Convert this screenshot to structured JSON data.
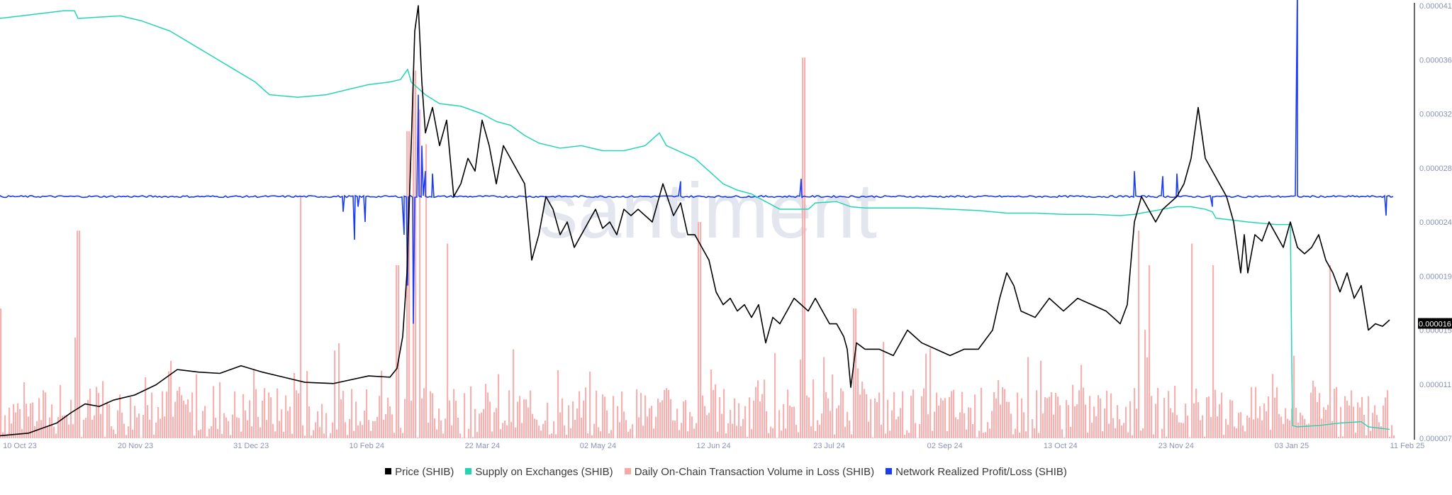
{
  "chart_data": {
    "type": "line",
    "watermark": "santiment",
    "x_ticks": [
      "10 Oct 23",
      "20 Nov 23",
      "31 Dec 23",
      "10 Feb 24",
      "22 Mar 24",
      "02 May 24",
      "12 Jun 24",
      "23 Jul 24",
      "02 Sep 24",
      "13 Oct 24",
      "23 Nov 24",
      "03 Jan 25",
      "11 Feb 25"
    ],
    "y_ticks": [
      "0.000041",
      "0.000036",
      "0.000032",
      "0.000028",
      "0.000024",
      "0.000019",
      "0.000015",
      "0.000011",
      "0.000007"
    ],
    "ylim": [
      7e-06,
      4.1e-05
    ],
    "price_label": "0.000016",
    "legend_placement": "bottom",
    "series": [
      {
        "name": "Price (SHIB)",
        "color": "#000000",
        "kind": "line",
        "axis": "price",
        "points": [
          [
            0,
            7.2e-06
          ],
          [
            40,
            7.4e-06
          ],
          [
            80,
            8.2e-06
          ],
          [
            100,
            9e-06
          ],
          [
            120,
            9.7e-06
          ],
          [
            140,
            9.5e-06
          ],
          [
            160,
            1e-05
          ],
          [
            190,
            1.04e-05
          ],
          [
            220,
            1.12e-05
          ],
          [
            250,
            1.24e-05
          ],
          [
            280,
            1.22e-05
          ],
          [
            310,
            1.21e-05
          ],
          [
            340,
            1.27e-05
          ],
          [
            370,
            1.22e-05
          ],
          [
            400,
            1.18e-05
          ],
          [
            430,
            1.14e-05
          ],
          [
            470,
            1.13e-05
          ],
          [
            520,
            1.19e-05
          ],
          [
            550,
            1.18e-05
          ],
          [
            560,
            1.25e-05
          ],
          [
            568,
            1.5e-05
          ],
          [
            574,
            2e-05
          ],
          [
            580,
            3e-05
          ],
          [
            585,
            3.9e-05
          ],
          [
            590,
            4.1e-05
          ],
          [
            595,
            3.5e-05
          ],
          [
            600,
            3.1e-05
          ],
          [
            610,
            3.3e-05
          ],
          [
            620,
            3e-05
          ],
          [
            630,
            3.2e-05
          ],
          [
            640,
            2.6e-05
          ],
          [
            650,
            2.7e-05
          ],
          [
            660,
            2.9e-05
          ],
          [
            670,
            2.8e-05
          ],
          [
            680,
            3.2e-05
          ],
          [
            690,
            3e-05
          ],
          [
            700,
            2.7e-05
          ],
          [
            710,
            3e-05
          ],
          [
            720,
            2.9e-05
          ],
          [
            730,
            2.8e-05
          ],
          [
            740,
            2.7e-05
          ],
          [
            750,
            2.1e-05
          ],
          [
            760,
            2.3e-05
          ],
          [
            770,
            2.6e-05
          ],
          [
            780,
            2.5e-05
          ],
          [
            790,
            2.3e-05
          ],
          [
            800,
            2.4e-05
          ],
          [
            810,
            2.2e-05
          ],
          [
            820,
            2.3e-05
          ],
          [
            830,
            2.4e-05
          ],
          [
            840,
            2.5e-05
          ],
          [
            850,
            2.35e-05
          ],
          [
            860,
            2.4e-05
          ],
          [
            870,
            2.3e-05
          ],
          [
            880,
            2.5e-05
          ],
          [
            890,
            2.45e-05
          ],
          [
            900,
            2.5e-05
          ],
          [
            920,
            2.4e-05
          ],
          [
            935,
            2.7e-05
          ],
          [
            950,
            2.45e-05
          ],
          [
            960,
            2.55e-05
          ],
          [
            970,
            2.3e-05
          ],
          [
            980,
            2.3e-05
          ],
          [
            990,
            2.2e-05
          ],
          [
            1000,
            2.1e-05
          ],
          [
            1010,
            1.85e-05
          ],
          [
            1020,
            1.75e-05
          ],
          [
            1030,
            1.8e-05
          ],
          [
            1040,
            1.7e-05
          ],
          [
            1050,
            1.75e-05
          ],
          [
            1060,
            1.65e-05
          ],
          [
            1070,
            1.75e-05
          ],
          [
            1080,
            1.45e-05
          ],
          [
            1090,
            1.65e-05
          ],
          [
            1100,
            1.6e-05
          ],
          [
            1110,
            1.7e-05
          ],
          [
            1120,
            1.8e-05
          ],
          [
            1130,
            1.75e-05
          ],
          [
            1140,
            1.7e-05
          ],
          [
            1150,
            1.8e-05
          ],
          [
            1160,
            1.7e-05
          ],
          [
            1170,
            1.6e-05
          ],
          [
            1180,
            1.6e-05
          ],
          [
            1190,
            1.5e-05
          ],
          [
            1195,
            1.4e-05
          ],
          [
            1200,
            1.1e-05
          ],
          [
            1208,
            1.45e-05
          ],
          [
            1220,
            1.4e-05
          ],
          [
            1240,
            1.4e-05
          ],
          [
            1260,
            1.35e-05
          ],
          [
            1280,
            1.55e-05
          ],
          [
            1290,
            1.5e-05
          ],
          [
            1300,
            1.45e-05
          ],
          [
            1320,
            1.4e-05
          ],
          [
            1340,
            1.35e-05
          ],
          [
            1360,
            1.4e-05
          ],
          [
            1380,
            1.4e-05
          ],
          [
            1400,
            1.55e-05
          ],
          [
            1410,
            1.8e-05
          ],
          [
            1420,
            2e-05
          ],
          [
            1430,
            1.9e-05
          ],
          [
            1440,
            1.7e-05
          ],
          [
            1460,
            1.65e-05
          ],
          [
            1480,
            1.8e-05
          ],
          [
            1500,
            1.7e-05
          ],
          [
            1520,
            1.8e-05
          ],
          [
            1540,
            1.75e-05
          ],
          [
            1560,
            1.7e-05
          ],
          [
            1580,
            1.6e-05
          ],
          [
            1590,
            1.75e-05
          ],
          [
            1600,
            2.4e-05
          ],
          [
            1610,
            2.6e-05
          ],
          [
            1620,
            2.5e-05
          ],
          [
            1630,
            2.4e-05
          ],
          [
            1640,
            2.5e-05
          ],
          [
            1660,
            2.6e-05
          ],
          [
            1670,
            2.7e-05
          ],
          [
            1680,
            2.9e-05
          ],
          [
            1690,
            3.3e-05
          ],
          [
            1700,
            2.9e-05
          ],
          [
            1710,
            2.8e-05
          ],
          [
            1720,
            2.7e-05
          ],
          [
            1730,
            2.6e-05
          ],
          [
            1740,
            2.4e-05
          ],
          [
            1750,
            2e-05
          ],
          [
            1755,
            2.3e-05
          ],
          [
            1760,
            2e-05
          ],
          [
            1770,
            2.3e-05
          ],
          [
            1780,
            2.25e-05
          ],
          [
            1790,
            2.4e-05
          ],
          [
            1800,
            2.3e-05
          ],
          [
            1810,
            2.2e-05
          ],
          [
            1820,
            2.4e-05
          ],
          [
            1830,
            2.2e-05
          ],
          [
            1840,
            2.15e-05
          ],
          [
            1850,
            2.2e-05
          ],
          [
            1860,
            2.3e-05
          ],
          [
            1870,
            2.1e-05
          ],
          [
            1880,
            2e-05
          ],
          [
            1890,
            1.85e-05
          ],
          [
            1900,
            2e-05
          ],
          [
            1910,
            1.8e-05
          ],
          [
            1920,
            1.9e-05
          ],
          [
            1930,
            1.55e-05
          ],
          [
            1940,
            1.6e-05
          ],
          [
            1950,
            1.58e-05
          ],
          [
            1960,
            1.63e-05
          ]
        ]
      },
      {
        "name": "Supply on Exchanges (SHIB)",
        "color": "#26d4b4",
        "kind": "line",
        "axis": "supply",
        "points": [
          [
            0,
            4e-05
          ],
          [
            30,
            4.02e-05
          ],
          [
            60,
            4.04e-05
          ],
          [
            90,
            4.06e-05
          ],
          [
            105,
            4.06e-05
          ],
          [
            110,
            4e-05
          ],
          [
            140,
            4.01e-05
          ],
          [
            170,
            4.02e-05
          ],
          [
            200,
            3.98e-05
          ],
          [
            240,
            3.9e-05
          ],
          [
            270,
            3.8e-05
          ],
          [
            300,
            3.7e-05
          ],
          [
            330,
            3.6e-05
          ],
          [
            360,
            3.5e-05
          ],
          [
            370,
            3.45e-05
          ],
          [
            380,
            3.4e-05
          ],
          [
            420,
            3.38e-05
          ],
          [
            440,
            3.39e-05
          ],
          [
            460,
            3.4e-05
          ],
          [
            490,
            3.44e-05
          ],
          [
            520,
            3.48e-05
          ],
          [
            550,
            3.5e-05
          ],
          [
            565,
            3.52e-05
          ],
          [
            575,
            3.6e-05
          ],
          [
            580,
            3.5e-05
          ],
          [
            600,
            3.4e-05
          ],
          [
            620,
            3.33e-05
          ],
          [
            650,
            3.31e-05
          ],
          [
            680,
            3.25e-05
          ],
          [
            700,
            3.19e-05
          ],
          [
            720,
            3.16e-05
          ],
          [
            740,
            3.08e-05
          ],
          [
            760,
            3.02e-05
          ],
          [
            790,
            2.98e-05
          ],
          [
            820,
            3e-05
          ],
          [
            850,
            2.96e-05
          ],
          [
            880,
            2.96e-05
          ],
          [
            910,
            3e-05
          ],
          [
            930,
            3.1e-05
          ],
          [
            940,
            3e-05
          ],
          [
            960,
            2.95e-05
          ],
          [
            980,
            2.9e-05
          ],
          [
            1000,
            2.8e-05
          ],
          [
            1020,
            2.7e-05
          ],
          [
            1040,
            2.65e-05
          ],
          [
            1060,
            2.62e-05
          ],
          [
            1080,
            2.56e-05
          ],
          [
            1100,
            2.5e-05
          ],
          [
            1140,
            2.5e-05
          ],
          [
            1150,
            2.55e-05
          ],
          [
            1180,
            2.56e-05
          ],
          [
            1200,
            2.52e-05
          ],
          [
            1220,
            2.51e-05
          ],
          [
            1260,
            2.51e-05
          ],
          [
            1300,
            2.51e-05
          ],
          [
            1340,
            2.5e-05
          ],
          [
            1380,
            2.49e-05
          ],
          [
            1420,
            2.47e-05
          ],
          [
            1460,
            2.47e-05
          ],
          [
            1500,
            2.46e-05
          ],
          [
            1540,
            2.46e-05
          ],
          [
            1580,
            2.45e-05
          ],
          [
            1600,
            2.46e-05
          ],
          [
            1620,
            2.48e-05
          ],
          [
            1640,
            2.5e-05
          ],
          [
            1660,
            2.52e-05
          ],
          [
            1680,
            2.52e-05
          ],
          [
            1700,
            2.5e-05
          ],
          [
            1710,
            2.48e-05
          ],
          [
            1715,
            2.43e-05
          ],
          [
            1730,
            2.42e-05
          ],
          [
            1760,
            2.4e-05
          ],
          [
            1800,
            2.38e-05
          ],
          [
            1820,
            2.38e-05
          ],
          [
            1823,
            8e-06
          ],
          [
            1830,
            7.9e-06
          ],
          [
            1860,
            8e-06
          ],
          [
            1890,
            8.2e-06
          ],
          [
            1920,
            8.3e-06
          ],
          [
            1930,
            7.9e-06
          ],
          [
            1945,
            7.8e-06
          ],
          [
            1960,
            7.7e-06
          ]
        ]
      },
      {
        "name": "Daily On-Chain Transaction Volume in Loss (SHIB)",
        "color": "#f7a9a9",
        "kind": "bar",
        "axis": "volume",
        "spikes": [
          [
            0,
            0.3
          ],
          [
            110,
            0.48
          ],
          [
            423,
            0.56
          ],
          [
            560,
            0.4
          ],
          [
            575,
            0.71
          ],
          [
            584,
            0.85
          ],
          [
            591,
            0.76
          ],
          [
            600,
            0.68
          ],
          [
            630,
            0.45
          ],
          [
            985,
            0.5
          ],
          [
            1132,
            0.88
          ],
          [
            1205,
            0.3
          ],
          [
            1605,
            0.48
          ],
          [
            1620,
            0.4
          ],
          [
            1680,
            0.45
          ],
          [
            1710,
            0.4
          ],
          [
            1875,
            0.4
          ]
        ],
        "baseline_level": 0.12,
        "max_volume_label": ""
      },
      {
        "name": "Network Realized Profit/Loss (SHIB)",
        "color": "#1a3cf5",
        "kind": "line",
        "axis": "nrpl",
        "zero_level": 2.6e-05,
        "spikes": [
          [
            484,
            -1.2e-06
          ],
          [
            500,
            -3.4e-06
          ],
          [
            505,
            -8e-07
          ],
          [
            515,
            -2e-06
          ],
          [
            570,
            -3e-06
          ],
          [
            575,
            -7e-06
          ],
          [
            583,
            -1e-05
          ],
          [
            590,
            8e-06
          ],
          [
            595,
            4e-06
          ],
          [
            600,
            2e-06
          ],
          [
            610,
            1.8e-06
          ],
          [
            960,
            1.2e-06
          ],
          [
            1130,
            1.4e-06
          ],
          [
            1600,
            2e-06
          ],
          [
            1640,
            1.6e-06
          ],
          [
            1660,
            1.8e-06
          ],
          [
            1710,
            -8e-07
          ],
          [
            1830,
            1.7e-05
          ],
          [
            1955,
            -1.5e-06
          ]
        ]
      }
    ]
  },
  "legend": [
    {
      "label": "Price (SHIB)",
      "color": "#000000"
    },
    {
      "label": "Supply on Exchanges (SHIB)",
      "color": "#26d4b4"
    },
    {
      "label": "Daily On-Chain Transaction Volume in Loss (SHIB)",
      "color": "#f7a9a9"
    },
    {
      "label": "Network Realized Profit/Loss (SHIB)",
      "color": "#1a3cf5"
    }
  ]
}
